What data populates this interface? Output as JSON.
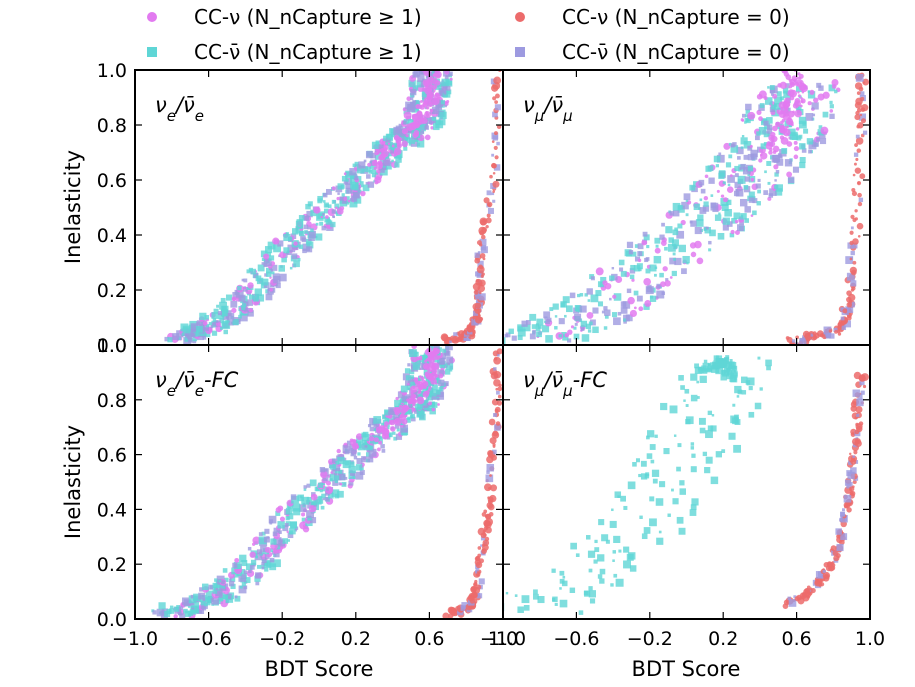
{
  "chart_data": {
    "type": "scatter",
    "legend": {
      "placement": "top",
      "entries": [
        {
          "key": "nu_cap",
          "label": "CC-ν (N_nCapture ≥ 1)",
          "marker": "circle",
          "color": "#e27af0"
        },
        {
          "key": "nu_nocap",
          "label": "CC-ν (N_nCapture = 0)",
          "marker": "circle",
          "color": "#ec6b6b"
        },
        {
          "key": "nubar_cap",
          "label": "CC-ν̄ (N_nCapture ≥ 1)",
          "marker": "square",
          "color": "#5fd6d6"
        },
        {
          "key": "nubar_nocap",
          "label": "CC-ν̄ (N_nCapture = 0)",
          "marker": "square",
          "color": "#9d9ae0"
        }
      ]
    },
    "xlabel": "BDT Score",
    "ylabel": "Inelasticity",
    "xlim": [
      -1.0,
      1.0
    ],
    "ylim": [
      0.0,
      1.0
    ],
    "xticks": [
      "−1.0",
      "−0.6",
      "−0.2",
      "0.2",
      "0.6",
      "1.0"
    ],
    "xtick_values": [
      -1.0,
      -0.6,
      -0.2,
      0.2,
      0.6,
      1.0
    ],
    "yticks": [
      "0.0",
      "0.2",
      "0.4",
      "0.6",
      "0.8",
      "1.0"
    ],
    "ytick_values": [
      0.0,
      0.2,
      0.4,
      0.6,
      0.8,
      1.0
    ],
    "panels": [
      {
        "label": "νe/ν̄e",
        "label_html": "ν<tspan baseline-shift=\"sub\" font-size=\"15\">e</tspan>/ν̄<tspan baseline-shift=\"sub\" font-size=\"15\">e</tspan>",
        "bands": [
          {
            "series": "mix",
            "pts": [
              [
                -0.75,
                0.02
              ],
              [
                -0.55,
                0.08
              ],
              [
                -0.35,
                0.2
              ],
              [
                -0.15,
                0.36
              ],
              [
                0.05,
                0.5
              ],
              [
                0.25,
                0.62
              ],
              [
                0.42,
                0.73
              ],
              [
                0.55,
                0.8
              ],
              [
                0.6,
                0.9
              ],
              [
                0.62,
                1.0
              ]
            ],
            "width": 0.22
          },
          {
            "series": "nu_cap",
            "pts": [
              [
                0.3,
                0.65
              ],
              [
                0.5,
                0.78
              ],
              [
                0.6,
                0.88
              ],
              [
                0.62,
                1.0
              ]
            ],
            "width": 0.08
          },
          {
            "series": "nocap",
            "pts": [
              [
                0.7,
                0.02
              ],
              [
                0.82,
                0.04
              ],
              [
                0.86,
                0.1
              ],
              [
                0.87,
                0.2
              ],
              [
                0.88,
                0.35
              ],
              [
                0.95,
                0.6
              ],
              [
                0.97,
                1.0
              ]
            ],
            "width": 0.04
          }
        ]
      },
      {
        "label": "νμ/ν̄μ",
        "label_html": "ν<tspan baseline-shift=\"sub\" font-size=\"15\">μ</tspan>/ν̄<tspan baseline-shift=\"sub\" font-size=\"15\">μ</tspan>",
        "bands": [
          {
            "series": "mix",
            "pts": [
              [
                -0.8,
                0.02
              ],
              [
                -0.5,
                0.12
              ],
              [
                -0.2,
                0.28
              ],
              [
                0.1,
                0.45
              ],
              [
                0.3,
                0.58
              ],
              [
                0.45,
                0.7
              ],
              [
                0.55,
                0.82
              ],
              [
                0.6,
                0.95
              ]
            ],
            "width": 0.5
          },
          {
            "series": "nu_cap",
            "pts": [
              [
                0.45,
                0.7
              ],
              [
                0.55,
                0.82
              ],
              [
                0.6,
                0.92
              ],
              [
                0.58,
                1.0
              ]
            ],
            "width": 0.1
          },
          {
            "series": "nocap",
            "pts": [
              [
                0.55,
                0.01
              ],
              [
                0.7,
                0.03
              ],
              [
                0.85,
                0.06
              ],
              [
                0.88,
                0.15
              ],
              [
                0.92,
                0.4
              ],
              [
                0.95,
                0.8
              ],
              [
                0.96,
                1.0
              ]
            ],
            "width": 0.05
          }
        ]
      },
      {
        "label": "νe/ν̄e-FC",
        "label_html": "ν<tspan baseline-shift=\"sub\" font-size=\"15\">e</tspan>/ν̄<tspan baseline-shift=\"sub\" font-size=\"15\">e</tspan>-FC",
        "bands": [
          {
            "series": "mix",
            "pts": [
              [
                -0.8,
                0.02
              ],
              [
                -0.55,
                0.08
              ],
              [
                -0.35,
                0.2
              ],
              [
                -0.15,
                0.36
              ],
              [
                0.05,
                0.5
              ],
              [
                0.25,
                0.62
              ],
              [
                0.42,
                0.73
              ],
              [
                0.55,
                0.8
              ],
              [
                0.6,
                0.9
              ],
              [
                0.62,
                1.0
              ]
            ],
            "width": 0.24
          },
          {
            "series": "nu_cap",
            "pts": [
              [
                0.3,
                0.65
              ],
              [
                0.5,
                0.78
              ],
              [
                0.6,
                0.88
              ],
              [
                0.62,
                1.0
              ]
            ],
            "width": 0.08
          },
          {
            "series": "nocap",
            "pts": [
              [
                0.7,
                0.02
              ],
              [
                0.82,
                0.04
              ],
              [
                0.86,
                0.1
              ],
              [
                0.88,
                0.25
              ],
              [
                0.92,
                0.4
              ],
              [
                0.96,
                0.7
              ],
              [
                0.97,
                1.0
              ]
            ],
            "width": 0.04
          }
        ]
      },
      {
        "label": "νμ/ν̄μ-FC",
        "label_html": "ν<tspan baseline-shift=\"sub\" font-size=\"15\">μ</tspan>/ν̄<tspan baseline-shift=\"sub\" font-size=\"15\">μ</tspan>-FC",
        "bands": [
          {
            "series": "nubar_cap",
            "pts": [
              [
                -0.85,
                0.03
              ],
              [
                -0.6,
                0.15
              ],
              [
                -0.3,
                0.3
              ],
              [
                -0.1,
                0.5
              ],
              [
                0.05,
                0.65
              ],
              [
                0.15,
                0.8
              ],
              [
                0.2,
                0.95
              ]
            ],
            "width": 0.55
          },
          {
            "series": "nubar_cap",
            "pts": [
              [
                0.1,
                0.9
              ],
              [
                0.2,
                0.95
              ],
              [
                0.25,
                0.88
              ]
            ],
            "width": 0.08
          },
          {
            "series": "nocap",
            "pts": [
              [
                0.55,
                0.05
              ],
              [
                0.7,
                0.12
              ],
              [
                0.8,
                0.2
              ],
              [
                0.86,
                0.35
              ],
              [
                0.9,
                0.5
              ],
              [
                0.93,
                0.7
              ],
              [
                0.95,
                0.9
              ]
            ],
            "width": 0.05
          }
        ]
      }
    ]
  }
}
